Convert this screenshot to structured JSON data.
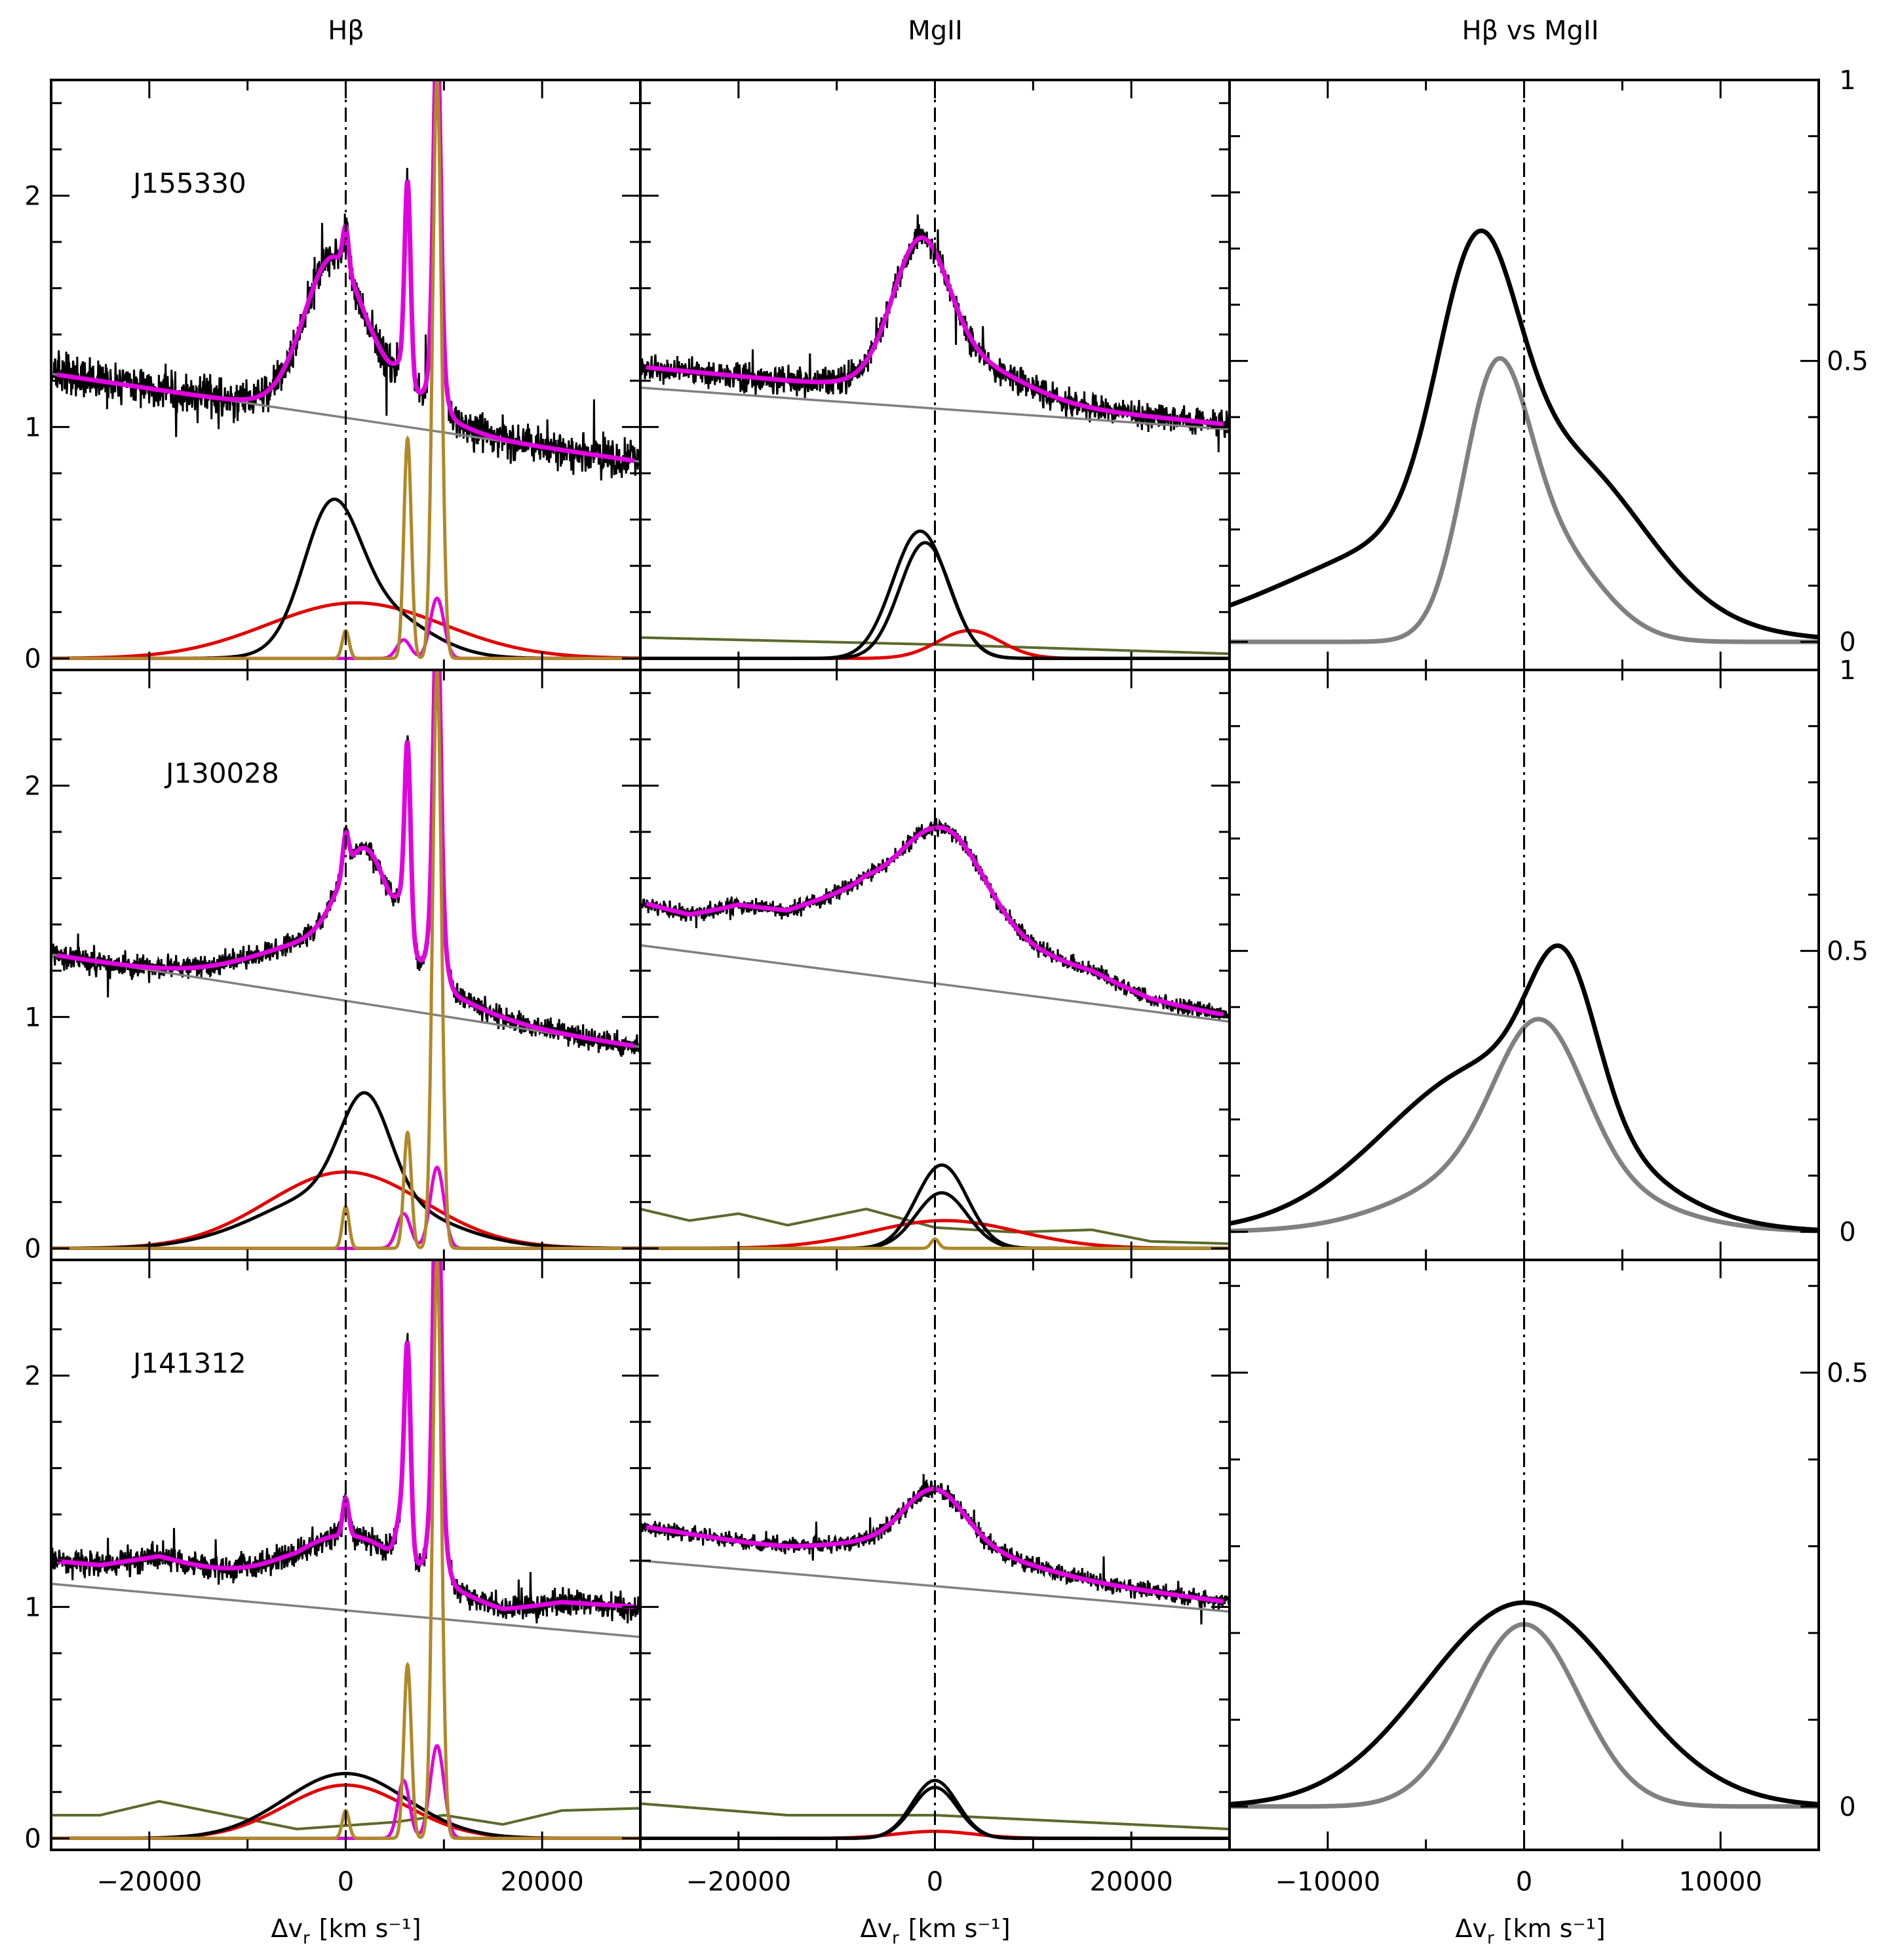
{
  "figure": {
    "column_titles": [
      "Hβ",
      "MgII",
      "Hβ vs MgII"
    ],
    "xlabel": "Δv",
    "xlabel_sub": "r",
    "xlabel_unit": "[km s⁻¹]"
  },
  "colors": {
    "data": "#000000",
    "fit": "#e000e0",
    "continuum": "#808080",
    "broad_component": "#000000",
    "very_broad_component": "#e00000",
    "narrow_lines": "#b08828",
    "feii": "#5a6a2a",
    "hbeta_profile": "#000000",
    "mgii_profile": "#808080"
  },
  "chart_data": [
    {
      "type": "line",
      "row": 0,
      "col": 0,
      "panel": "Hβ",
      "object": "J155330",
      "xlim": [
        -30000,
        30000
      ],
      "ylim": [
        -0.05,
        2.5
      ],
      "xticks": [
        -20000,
        0,
        20000
      ],
      "yticks": [
        0,
        1,
        2
      ],
      "continuum": [
        [
          -30000,
          1.23
        ],
        [
          30000,
          0.85
        ]
      ],
      "noise": 0.06,
      "fit_peak": [
        -1500,
        0.52,
        2800
      ],
      "fit_tail": [
        2500,
        0.22,
        5200
      ],
      "broad_peak": [
        -1500,
        0.52,
        2800
      ],
      "broad_tail": [
        2500,
        0.22,
        5200
      ],
      "very_broad": [
        1000,
        0.24,
        9000
      ],
      "narrow": [
        [
          0,
          0.12,
          350
        ],
        [
          6300,
          0.95,
          380
        ],
        [
          9300,
          2.5,
          450
        ]
      ],
      "fit_narrow": [
        [
          0,
          0.18,
          300
        ],
        [
          6300,
          0.82,
          300
        ],
        [
          9300,
          1.4,
          350
        ],
        [
          9300,
          0.26,
          700
        ],
        [
          5900,
          0.08,
          700
        ]
      ],
      "feii": null
    },
    {
      "type": "line",
      "row": 0,
      "col": 1,
      "panel": "MgII",
      "object": "",
      "xlim": [
        -30000,
        30000
      ],
      "ylim": [
        -0.05,
        2.5
      ],
      "xticks": [
        -20000,
        0,
        20000
      ],
      "yticks": [],
      "continuum": [
        [
          -30000,
          1.17
        ],
        [
          30000,
          0.99
        ]
      ],
      "noise": 0.04,
      "fit_peak": [
        -1500,
        0.55,
        2800
      ],
      "fit_tail": [
        2800,
        0.16,
        5800
      ],
      "broad_peak": [
        -1500,
        0.55,
        2800
      ],
      "broad_tail": [
        -1000,
        0.5,
        2600
      ],
      "very_broad": [
        3500,
        0.12,
        3200
      ],
      "narrow": [],
      "fit_narrow": [],
      "feii": [
        [
          -30000,
          0.09
        ],
        [
          0,
          0.06
        ],
        [
          30000,
          0.02
        ]
      ]
    },
    {
      "type": "line",
      "row": 0,
      "col": 2,
      "panel": "Hβ vs MgII",
      "object": "",
      "xlim": [
        -15000,
        15000
      ],
      "ylim": [
        -0.05,
        1.0
      ],
      "xticks": [
        -10000,
        0,
        10000
      ],
      "yticks": [
        0,
        0.5,
        1
      ],
      "hbeta": [
        [
          -2400,
          0.46,
          2000
        ],
        [
          2500,
          0.2,
          3700
        ],
        [
          -4000,
          0.19,
          7500
        ]
      ],
      "mgii": [
        [
          -1500,
          0.4,
          1650
        ],
        [
          1200,
          0.17,
          2600
        ]
      ]
    },
    {
      "type": "line",
      "row": 1,
      "col": 0,
      "panel": "Hβ",
      "object": "J130028",
      "xlim": [
        -30000,
        30000
      ],
      "ylim": [
        -0.05,
        2.5
      ],
      "xticks": [
        -20000,
        0,
        20000
      ],
      "yticks": [
        0,
        1,
        2
      ],
      "continuum": [
        [
          -30000,
          1.27
        ],
        [
          30000,
          0.87
        ]
      ],
      "noise": 0.035,
      "fit_peak": [
        2000,
        0.42,
        2500
      ],
      "fit_tail": [
        0,
        0.26,
        8000
      ],
      "broad_peak": [
        2000,
        0.42,
        2500
      ],
      "broad_tail": [
        0,
        0.26,
        8000
      ],
      "very_broad": [
        0,
        0.33,
        8000
      ],
      "narrow": [
        [
          0,
          0.18,
          350
        ],
        [
          6300,
          0.5,
          380
        ],
        [
          9300,
          2.5,
          450
        ]
      ],
      "fit_narrow": [
        [
          0,
          0.16,
          300
        ],
        [
          6300,
          0.75,
          300
        ],
        [
          9300,
          1.3,
          350
        ],
        [
          9300,
          0.35,
          700
        ],
        [
          5900,
          0.15,
          700
        ]
      ],
      "feii": null
    },
    {
      "type": "line",
      "row": 1,
      "col": 1,
      "panel": "MgII",
      "object": "",
      "xlim": [
        -30000,
        30000
      ],
      "ylim": [
        -0.05,
        2.5
      ],
      "xticks": [
        -20000,
        0,
        20000
      ],
      "yticks": [],
      "continuum": [
        [
          -30000,
          1.31
        ],
        [
          30000,
          0.98
        ]
      ],
      "noise": 0.025,
      "fit_peak": [
        1000,
        0.38,
        4000
      ],
      "fit_tail": [
        -3000,
        0.22,
        12000
      ],
      "broad_peak": [
        700,
        0.36,
        2600
      ],
      "broad_tail": [
        700,
        0.24,
        2600
      ],
      "very_broad": [
        1000,
        0.12,
        7500
      ],
      "narrow": [
        [
          0,
          0.04,
          400
        ]
      ],
      "fit_narrow": [],
      "feii": [
        [
          -30000,
          0.17
        ],
        [
          -25000,
          0.12
        ],
        [
          -20000,
          0.15
        ],
        [
          -15000,
          0.1
        ],
        [
          -7000,
          0.17
        ],
        [
          0,
          0.09
        ],
        [
          8000,
          0.07
        ],
        [
          16000,
          0.08
        ],
        [
          22000,
          0.03
        ],
        [
          30000,
          0.02
        ]
      ]
    },
    {
      "type": "line",
      "row": 1,
      "col": 2,
      "panel": "Hβ vs MgII",
      "object": "",
      "xlim": [
        -15000,
        15000
      ],
      "ylim": [
        -0.05,
        1.0
      ],
      "xticks": [
        -10000,
        0,
        10000
      ],
      "yticks": [
        0,
        0.5,
        1
      ],
      "hbeta": [
        [
          2000,
          0.26,
          1700
        ],
        [
          -1500,
          0.3,
          5500
        ]
      ],
      "mgii": [
        [
          800,
          0.25,
          2200
        ],
        [
          0,
          0.13,
          5000
        ]
      ]
    },
    {
      "type": "line",
      "row": 2,
      "col": 0,
      "panel": "Hβ",
      "object": "J141312",
      "xlim": [
        -30000,
        30000
      ],
      "ylim": [
        -0.05,
        2.5
      ],
      "xticks": [
        -20000,
        0,
        20000
      ],
      "yticks": [
        0,
        1,
        2
      ],
      "continuum": [
        [
          -30000,
          1.1
        ],
        [
          30000,
          0.87
        ]
      ],
      "noise": 0.04,
      "fit_peak": [
        0,
        0.27,
        6000
      ],
      "fit_tail": [
        0,
        0.0,
        1000
      ],
      "broad_peak": [
        0,
        0.28,
        6200
      ],
      "broad_tail": [
        0,
        0.0,
        1000
      ],
      "very_broad": [
        0,
        0.23,
        6200
      ],
      "narrow": [
        [
          0,
          0.12,
          350
        ],
        [
          6300,
          0.75,
          380
        ],
        [
          9300,
          2.5,
          450
        ]
      ],
      "fit_narrow": [
        [
          0,
          0.16,
          300
        ],
        [
          6300,
          0.75,
          300
        ],
        [
          9300,
          1.6,
          350
        ],
        [
          9300,
          0.4,
          700
        ],
        [
          5900,
          0.25,
          600
        ]
      ],
      "feii": [
        [
          -30000,
          0.1
        ],
        [
          -25000,
          0.1
        ],
        [
          -19000,
          0.16
        ],
        [
          -12000,
          0.1
        ],
        [
          -5000,
          0.04
        ],
        [
          5000,
          0.07
        ],
        [
          10000,
          0.1
        ],
        [
          16000,
          0.06
        ],
        [
          22000,
          0.12
        ],
        [
          30000,
          0.13
        ]
      ]
    },
    {
      "type": "line",
      "row": 2,
      "col": 1,
      "panel": "MgII",
      "object": "",
      "xlim": [
        -30000,
        30000
      ],
      "ylim": [
        -0.05,
        2.5
      ],
      "xticks": [
        -20000,
        0,
        20000
      ],
      "yticks": [],
      "continuum": [
        [
          -30000,
          1.2
        ],
        [
          30000,
          0.98
        ]
      ],
      "noise": 0.025,
      "fit_peak": [
        0,
        0.22,
        3000
      ],
      "fit_tail": [
        0,
        0.1,
        8000
      ],
      "broad_peak": [
        0,
        0.25,
        2300
      ],
      "broad_tail": [
        0,
        0.22,
        2300
      ],
      "very_broad": [
        0,
        0.03,
        4000
      ],
      "narrow": [],
      "fit_narrow": [],
      "feii": [
        [
          -30000,
          0.15
        ],
        [
          -15000,
          0.1
        ],
        [
          0,
          0.1
        ],
        [
          15000,
          0.07
        ],
        [
          30000,
          0.04
        ]
      ]
    },
    {
      "type": "line",
      "row": 2,
      "col": 2,
      "panel": "Hβ vs MgII",
      "object": "",
      "xlim": [
        -15000,
        15000
      ],
      "ylim": [
        -0.05,
        0.63
      ],
      "xticks": [
        -10000,
        0,
        10000
      ],
      "yticks": [
        0,
        0.5
      ],
      "hbeta": [
        [
          0,
          0.235,
          5000
        ]
      ],
      "mgii": [
        [
          0,
          0.21,
          2800
        ]
      ]
    }
  ]
}
